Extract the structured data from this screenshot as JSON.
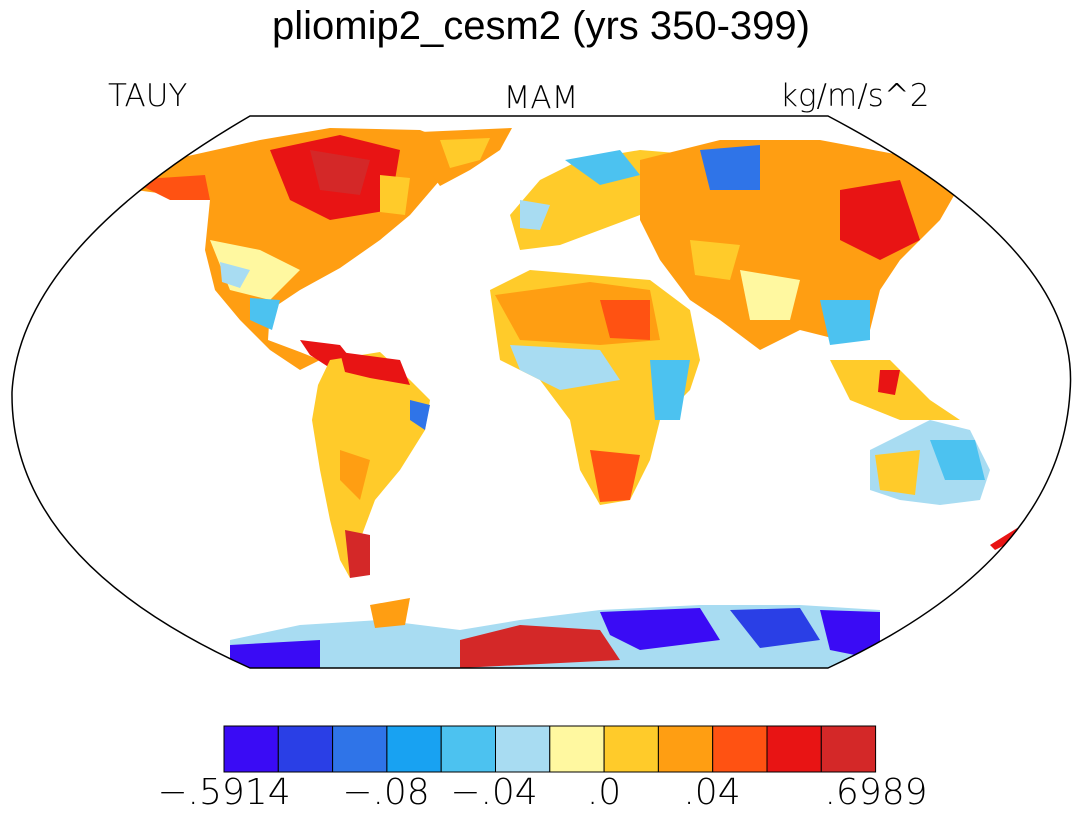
{
  "title": "pliomip2_cesm2 (yrs 350-399)",
  "left_label": "TAUY",
  "center_label": "MAM",
  "right_label": "kg/m/s^2",
  "colorbar": {
    "colors": [
      "#3a0bf5",
      "#2a3fe6",
      "#2f74e8",
      "#18a2f2",
      "#4cc2f0",
      "#a8dcf2",
      "#fff8a0",
      "#ffcb2a",
      "#ff9e12",
      "#ff5212",
      "#e81414",
      "#d42828"
    ],
    "labels": [
      "-.5914",
      "-.08",
      "-.04",
      ".0",
      ".04",
      ".6989"
    ],
    "label_positions": [
      0,
      2,
      3,
      4,
      5,
      6
    ]
  }
}
